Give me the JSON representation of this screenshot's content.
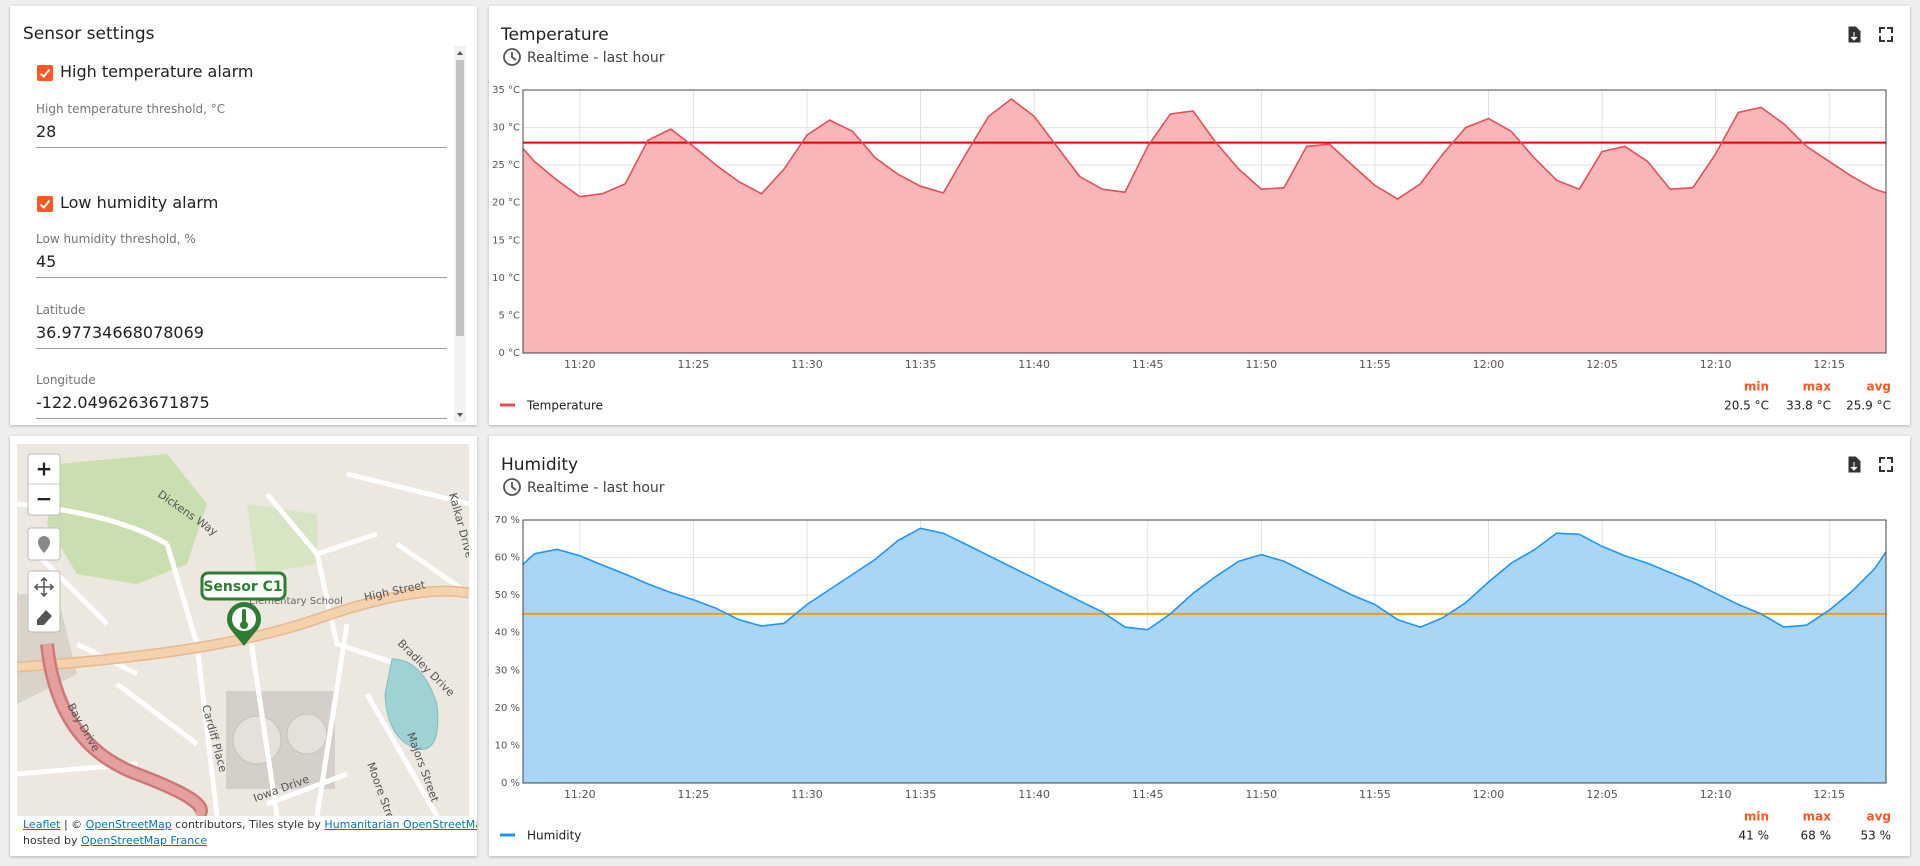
{
  "settings": {
    "title": "Sensor settings",
    "fields": [
      {
        "type": "checkbox",
        "label": "High temperature alarm",
        "checked": true
      },
      {
        "type": "text",
        "label": "High temperature threshold, °C",
        "value": "28"
      },
      {
        "type": "checkbox",
        "label": "Low humidity alarm",
        "checked": true
      },
      {
        "type": "text",
        "label": "Low humidity threshold, %",
        "value": "45"
      },
      {
        "type": "text",
        "label": "Latitude",
        "value": "36.97734668078069"
      },
      {
        "type": "text",
        "label": "Longitude",
        "value": "-122.0496263671875"
      }
    ]
  },
  "map": {
    "marker_label": "Sensor C1",
    "zoom_in": "+",
    "zoom_out": "−",
    "street_names": [
      "Dickens Way",
      "High Street",
      "Bradley Drive",
      "Bay Drive",
      "Cardiff Place",
      "Iowa Drive",
      "Majors Street",
      "Moore Street",
      "Kalkar Drive",
      "Elementary School"
    ],
    "attribution": [
      "Leaflet",
      " | © ",
      "OpenStreetMap",
      " contributors, Tiles style by ",
      "Humanitarian OpenStreetMap Team",
      "hosted by ",
      "OpenStreetMap France"
    ]
  },
  "charts": [
    {
      "type": "area",
      "title": "Temperature",
      "subtitle": "Realtime - last hour",
      "x": [
        "11:17:30",
        "11:18",
        "11:19",
        "11:20",
        "11:21",
        "11:22",
        "11:23",
        "11:24",
        "11:25",
        "11:26",
        "11:27",
        "11:28",
        "11:29",
        "11:30",
        "11:31",
        "11:32",
        "11:33",
        "11:34",
        "11:35",
        "11:36",
        "11:37",
        "11:38",
        "11:39",
        "11:40",
        "11:41",
        "11:42",
        "11:43",
        "11:44",
        "11:45",
        "11:46",
        "11:47",
        "11:48",
        "11:49",
        "11:50",
        "11:51",
        "11:52",
        "11:53",
        "11:54",
        "11:55",
        "11:56",
        "11:57",
        "11:58",
        "11:59",
        "12:00",
        "12:01",
        "12:02",
        "12:03",
        "12:04",
        "12:05",
        "12:06",
        "12:07",
        "12:08",
        "12:09",
        "12:10",
        "12:11",
        "12:12",
        "12:13",
        "12:14",
        "12:15",
        "12:16",
        "12:17",
        "12:17:30"
      ],
      "series": [
        {
          "name": "Temperature",
          "color": "#e0515a",
          "fill": "#f9b6b8",
          "values": [
            27.2,
            25.5,
            23,
            20.8,
            21.2,
            22.5,
            28.3,
            29.8,
            27.5,
            25,
            22.8,
            21.2,
            24.5,
            29,
            31,
            29.5,
            26,
            23.8,
            22.2,
            21.3,
            26.5,
            31.5,
            33.8,
            31.5,
            27.5,
            23.5,
            21.8,
            21.4,
            27.5,
            31.8,
            32.2,
            28,
            24.5,
            21.8,
            22,
            27.5,
            27.8,
            25,
            22.3,
            20.5,
            22.5,
            26.5,
            30,
            31.2,
            29.5,
            26,
            23,
            21.8,
            26.8,
            27.5,
            25.5,
            21.8,
            22,
            26.5,
            32,
            32.7,
            30.5,
            27.5,
            25.5,
            23.5,
            21.8,
            21.3
          ]
        }
      ],
      "threshold": {
        "value": 28,
        "color": "#e00000"
      },
      "xlim": [
        "11:17:30",
        "12:17:30"
      ],
      "xticks": [
        "11:20",
        "11:25",
        "11:30",
        "11:35",
        "11:40",
        "11:45",
        "11:50",
        "11:55",
        "12:00",
        "12:05",
        "12:10",
        "12:15"
      ],
      "ylim": [
        0,
        35
      ],
      "yticks": [
        {
          "value": 0,
          "label": "0 °C"
        },
        {
          "value": 5,
          "label": "5 °C"
        },
        {
          "value": 10,
          "label": "10 °C"
        },
        {
          "value": 15,
          "label": "15 °C"
        },
        {
          "value": 20,
          "label": "20 °C"
        },
        {
          "value": 25,
          "label": "25 °C"
        },
        {
          "value": 30,
          "label": "30 °C"
        },
        {
          "value": 35,
          "label": "35 °C"
        }
      ],
      "grid": true,
      "stats": [
        {
          "label": "min",
          "value": "20.5 °C"
        },
        {
          "label": "max",
          "value": "33.8 °C"
        },
        {
          "label": "avg",
          "value": "25.9 °C"
        }
      ]
    },
    {
      "type": "area",
      "title": "Humidity",
      "subtitle": "Realtime - last hour",
      "x": [
        "11:17:30",
        "11:18",
        "11:19",
        "11:20",
        "11:21",
        "11:22",
        "11:23",
        "11:24",
        "11:25",
        "11:26",
        "11:27",
        "11:28",
        "11:29",
        "11:30",
        "11:31",
        "11:32",
        "11:33",
        "11:34",
        "11:35",
        "11:36",
        "11:37",
        "11:38",
        "11:39",
        "11:40",
        "11:41",
        "11:42",
        "11:43",
        "11:44",
        "11:45",
        "11:46",
        "11:47",
        "11:48",
        "11:49",
        "11:50",
        "11:51",
        "11:52",
        "11:53",
        "11:54",
        "11:55",
        "11:56",
        "11:57",
        "11:58",
        "11:59",
        "12:00",
        "12:01",
        "12:02",
        "12:03",
        "12:04",
        "12:05",
        "12:06",
        "12:07",
        "12:08",
        "12:09",
        "12:10",
        "12:11",
        "12:12",
        "12:13",
        "12:14",
        "12:15",
        "12:16",
        "12:17",
        "12:17:30"
      ],
      "series": [
        {
          "name": "Humidity",
          "color": "#2196f3",
          "fill": "#a9d5f6",
          "values": [
            58.2,
            61,
            62.2,
            60.5,
            58,
            55.6,
            53,
            50.7,
            48.8,
            46.5,
            43.5,
            41.8,
            42.5,
            47.5,
            51.5,
            55.5,
            59.5,
            64.5,
            67.8,
            66.5,
            63.5,
            60.5,
            57.5,
            54.5,
            51.5,
            48.5,
            45.5,
            41.5,
            40.8,
            45,
            50.5,
            55,
            59,
            60.8,
            59,
            56,
            53,
            50,
            47.5,
            43.5,
            41.5,
            44,
            48,
            53.5,
            58.5,
            62,
            66.5,
            66.2,
            63,
            60.5,
            58.5,
            56,
            53.5,
            50.5,
            47.5,
            45,
            41.5,
            42,
            46,
            51,
            57,
            61.5
          ]
        }
      ],
      "threshold": {
        "value": 45,
        "color": "#f39c12"
      },
      "xlim": [
        "11:17:30",
        "12:17:30"
      ],
      "xticks": [
        "11:20",
        "11:25",
        "11:30",
        "11:35",
        "11:40",
        "11:45",
        "11:50",
        "11:55",
        "12:00",
        "12:05",
        "12:10",
        "12:15"
      ],
      "ylim": [
        0,
        70
      ],
      "yticks": [
        {
          "value": 0,
          "label": "0 %"
        },
        {
          "value": 10,
          "label": "10 %"
        },
        {
          "value": 20,
          "label": "20 %"
        },
        {
          "value": 30,
          "label": "30 %"
        },
        {
          "value": 40,
          "label": "40 %"
        },
        {
          "value": 50,
          "label": "50 %"
        },
        {
          "value": 60,
          "label": "60 %"
        },
        {
          "value": 70,
          "label": "70 %"
        }
      ],
      "grid": true,
      "stats": [
        {
          "label": "min",
          "value": "41 %"
        },
        {
          "label": "max",
          "value": "68 %"
        },
        {
          "label": "avg",
          "value": "53 %"
        }
      ]
    }
  ]
}
